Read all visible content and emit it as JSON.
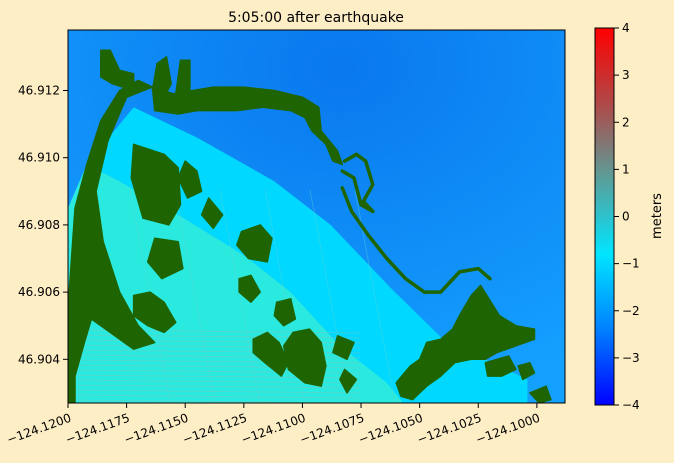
{
  "chart_data": {
    "type": "heatmap",
    "title": "5:05:00 after earthquake",
    "xlabel": "",
    "ylabel": "",
    "x_ticks": [
      {
        "value": -124.12,
        "label": "−124.1200"
      },
      {
        "value": -124.1175,
        "label": "−124.1175"
      },
      {
        "value": -124.115,
        "label": "−124.1150"
      },
      {
        "value": -124.1125,
        "label": "−124.1125"
      },
      {
        "value": -124.11,
        "label": "−124.1100"
      },
      {
        "value": -124.1075,
        "label": "−124.1075"
      },
      {
        "value": -124.105,
        "label": "−124.1050"
      },
      {
        "value": -124.1025,
        "label": "−124.1025"
      },
      {
        "value": -124.1,
        "label": "−124.1000"
      }
    ],
    "y_ticks": [
      {
        "value": 46.904,
        "label": "46.904"
      },
      {
        "value": 46.906,
        "label": "46.906"
      },
      {
        "value": 46.908,
        "label": "46.908"
      },
      {
        "value": 46.91,
        "label": "46.910"
      },
      {
        "value": 46.912,
        "label": "46.912"
      }
    ],
    "xlim": [
      -124.12,
      -124.0988
    ],
    "ylim": [
      46.9027,
      46.9138
    ],
    "colorbar": {
      "label": "meters",
      "min": -4,
      "max": 4,
      "ticks": [
        -4,
        -3,
        -2,
        -1,
        0,
        1,
        2,
        3,
        4
      ],
      "tick_labels": [
        "−4",
        "−3",
        "−2",
        "−1",
        "0",
        "1",
        "2",
        "3",
        "4"
      ],
      "colors": [
        "#0000ff",
        "#0080ff",
        "#00e5ff",
        "#5a9f9a",
        "#b04848",
        "#ff0000"
      ]
    },
    "colors": {
      "land": "#1e6400",
      "deep_water": "#0c86f2",
      "shallow_water": "#00d8ff",
      "inundated": "#2aeae0",
      "figure_background": "#feeec6"
    },
    "regions": {
      "land": [
        [
          [
            -124.12,
            46.9027
          ],
          [
            -124.12,
            46.9055
          ],
          [
            -124.1197,
            46.9085
          ],
          [
            -124.1192,
            46.9098
          ],
          [
            -124.1186,
            46.9111
          ],
          [
            -124.1178,
            46.912
          ],
          [
            -124.117,
            46.9123
          ],
          [
            -124.1164,
            46.9121
          ],
          [
            -124.1175,
            46.9118
          ],
          [
            -124.1183,
            46.9105
          ],
          [
            -124.1188,
            46.909
          ],
          [
            -124.1185,
            46.9075
          ],
          [
            -124.1178,
            46.906
          ],
          [
            -124.117,
            46.905
          ],
          [
            -124.1163,
            46.9045
          ],
          [
            -124.1172,
            46.9043
          ],
          [
            -124.1182,
            46.9048
          ],
          [
            -124.119,
            46.9052
          ],
          [
            -124.1193,
            46.9045
          ],
          [
            -124.1197,
            46.9035
          ],
          [
            -124.1197,
            46.9027
          ]
        ],
        [
          [
            -124.1172,
            46.912
          ],
          [
            -124.1181,
            46.9122
          ],
          [
            -124.1186,
            46.9124
          ],
          [
            -124.1186,
            46.9132
          ],
          [
            -124.1182,
            46.9132
          ],
          [
            -124.1178,
            46.9126
          ],
          [
            -124.1172,
            46.9125
          ]
        ],
        [
          [
            -124.1164,
            46.912
          ],
          [
            -124.1162,
            46.9128
          ],
          [
            -124.1158,
            46.913
          ],
          [
            -124.1156,
            46.9122
          ],
          [
            -124.1159,
            46.9118
          ]
        ],
        [
          [
            -124.1154,
            46.9119
          ],
          [
            -124.1152,
            46.9129
          ],
          [
            -124.1148,
            46.9129
          ],
          [
            -124.1148,
            46.912
          ]
        ],
        [
          [
            -124.1164,
            46.9121
          ],
          [
            -124.1155,
            46.9119
          ],
          [
            -124.1138,
            46.9121
          ],
          [
            -124.1125,
            46.9121
          ],
          [
            -124.1112,
            46.912
          ],
          [
            -124.11,
            46.9118
          ],
          [
            -124.1093,
            46.9115
          ],
          [
            -124.1092,
            46.9108
          ],
          [
            -124.1085,
            46.9102
          ],
          [
            -124.1083,
            46.9098
          ],
          [
            -124.1087,
            46.9099
          ],
          [
            -124.109,
            46.9104
          ],
          [
            -124.1096,
            46.9108
          ],
          [
            -124.1099,
            46.9112
          ],
          [
            -124.1105,
            46.9114
          ],
          [
            -124.1117,
            46.9115
          ],
          [
            -124.1128,
            46.9114
          ],
          [
            -124.1145,
            46.9114
          ],
          [
            -124.1153,
            46.9113
          ],
          [
            -124.1163,
            46.9114
          ]
        ],
        [
          [
            -124.1172,
            46.9104
          ],
          [
            -124.1159,
            46.9101
          ],
          [
            -124.1153,
            46.9097
          ],
          [
            -124.1152,
            46.9086
          ],
          [
            -124.1157,
            46.908
          ],
          [
            -124.1168,
            46.9082
          ],
          [
            -124.1173,
            46.9094
          ]
        ],
        [
          [
            -124.115,
            46.9099
          ],
          [
            -124.1145,
            46.9096
          ],
          [
            -124.1143,
            46.909
          ],
          [
            -124.1149,
            46.9088
          ],
          [
            -124.1153,
            46.9094
          ]
        ],
        [
          [
            -124.114,
            46.9088
          ],
          [
            -124.1134,
            46.9083
          ],
          [
            -124.1138,
            46.9079
          ],
          [
            -124.1143,
            46.9083
          ]
        ],
        [
          [
            -124.1163,
            46.9076
          ],
          [
            -124.1153,
            46.9075
          ],
          [
            -124.1151,
            46.9067
          ],
          [
            -124.116,
            46.9064
          ],
          [
            -124.1166,
            46.9069
          ]
        ],
        [
          [
            -124.1172,
            46.9059
          ],
          [
            -124.1165,
            46.906
          ],
          [
            -124.1159,
            46.9057
          ],
          [
            -124.1154,
            46.9051
          ],
          [
            -124.1159,
            46.9048
          ],
          [
            -124.1166,
            46.905
          ],
          [
            -124.1172,
            46.9053
          ]
        ],
        [
          [
            -124.1126,
            46.9078
          ],
          [
            -124.1118,
            46.908
          ],
          [
            -124.1113,
            46.9076
          ],
          [
            -124.1115,
            46.9069
          ],
          [
            -124.1123,
            46.907
          ],
          [
            -124.1128,
            46.9074
          ]
        ],
        [
          [
            -124.1127,
            46.9064
          ],
          [
            -124.1122,
            46.9065
          ],
          [
            -124.1118,
            46.906
          ],
          [
            -124.1122,
            46.9057
          ],
          [
            -124.1127,
            46.906
          ]
        ],
        [
          [
            -124.1111,
            46.9057
          ],
          [
            -124.1105,
            46.9058
          ],
          [
            -124.1103,
            46.9052
          ],
          [
            -124.1108,
            46.905
          ],
          [
            -124.1112,
            46.9053
          ]
        ],
        [
          [
            -124.1121,
            46.9046
          ],
          [
            -124.1115,
            46.9048
          ],
          [
            -124.111,
            46.9045
          ],
          [
            -124.1106,
            46.9039
          ],
          [
            -124.1109,
            46.9035
          ],
          [
            -124.1116,
            46.9039
          ],
          [
            -124.1121,
            46.9042
          ]
        ],
        [
          [
            -124.1104,
            46.9048
          ],
          [
            -124.1097,
            46.9049
          ],
          [
            -124.1092,
            46.9045
          ],
          [
            -124.109,
            46.9038
          ],
          [
            -124.1092,
            46.9032
          ],
          [
            -124.1099,
            46.9033
          ],
          [
            -124.1106,
            46.9037
          ],
          [
            -124.1108,
            46.9044
          ]
        ],
        [
          [
            -124.1085,
            46.9047
          ],
          [
            -124.1078,
            46.9045
          ],
          [
            -124.1081,
            46.904
          ],
          [
            -124.1087,
            46.9042
          ]
        ],
        [
          [
            -124.1082,
            46.9037
          ],
          [
            -124.1077,
            46.9034
          ],
          [
            -124.1081,
            46.903
          ],
          [
            -124.1084,
            46.9034
          ]
        ],
        [
          [
            -124.106,
            46.9033
          ],
          [
            -124.1054,
            46.9038
          ],
          [
            -124.105,
            46.904
          ],
          [
            -124.1047,
            46.9045
          ],
          [
            -124.1041,
            46.9046
          ],
          [
            -124.1036,
            46.9049
          ],
          [
            -124.1033,
            46.9053
          ],
          [
            -124.1028,
            46.9059
          ],
          [
            -124.1024,
            46.9062
          ],
          [
            -124.1016,
            46.9053
          ],
          [
            -124.1009,
            46.905
          ],
          [
            -124.1001,
            46.9049
          ],
          [
            -124.1001,
            46.9046
          ],
          [
            -124.1009,
            46.9044
          ],
          [
            -124.1017,
            46.9042
          ],
          [
            -124.1022,
            46.904
          ],
          [
            -124.1028,
            46.904
          ],
          [
            -124.1035,
            46.9039
          ],
          [
            -124.1041,
            46.9035
          ],
          [
            -124.1047,
            46.9032
          ],
          [
            -124.1053,
            46.9028
          ],
          [
            -124.1058,
            46.9029
          ]
        ],
        [
          [
            -124.1022,
            46.9039
          ],
          [
            -124.1012,
            46.9041
          ],
          [
            -124.1009,
            46.9037
          ],
          [
            -124.1015,
            46.9035
          ],
          [
            -124.1021,
            46.9035
          ]
        ],
        [
          [
            -124.1008,
            46.9038
          ],
          [
            -124.1003,
            46.9039
          ],
          [
            -124.1001,
            46.9036
          ],
          [
            -124.1006,
            46.9034
          ]
        ],
        [
          [
            -124.1003,
            46.903
          ],
          [
            -124.0996,
            46.9032
          ],
          [
            -124.0994,
            46.9028
          ],
          [
            -124.0999,
            46.9027
          ]
        ]
      ],
      "breakwater_lines": [
        [
          [
            -124.1082,
            46.9099
          ],
          [
            -124.1077,
            46.9101
          ],
          [
            -124.1073,
            46.9099
          ],
          [
            -124.107,
            46.9092
          ],
          [
            -124.1074,
            46.9087
          ],
          [
            -124.107,
            46.9084
          ],
          [
            -124.1075,
            46.9086
          ],
          [
            -124.1078,
            46.9094
          ],
          [
            -124.1083,
            46.9096
          ]
        ],
        [
          [
            -124.1083,
            46.9091
          ],
          [
            -124.1079,
            46.9084
          ],
          [
            -124.1072,
            46.9077
          ],
          [
            -124.1064,
            46.907
          ],
          [
            -124.1056,
            46.9064
          ],
          [
            -124.1048,
            46.906
          ],
          [
            -124.1041,
            46.906
          ],
          [
            -124.1037,
            46.9063
          ],
          [
            -124.1033,
            46.9066
          ],
          [
            -124.1025,
            46.9067
          ],
          [
            -124.102,
            46.9064
          ]
        ]
      ],
      "inundated_zone": [
        [
          -124.1192,
          46.9098
        ],
        [
          -124.1178,
          46.9093
        ],
        [
          -124.1153,
          46.9083
        ],
        [
          -124.1125,
          46.9071
        ],
        [
          -124.1105,
          46.906
        ],
        [
          -124.1084,
          46.9044
        ],
        [
          -124.1064,
          46.9033
        ],
        [
          -124.1057,
          46.9027
        ],
        [
          -124.12,
          46.9027
        ],
        [
          -124.12,
          46.9085
        ]
      ],
      "shallow_zone": [
        [
          -124.1172,
          46.9115
        ],
        [
          -124.1145,
          46.9106
        ],
        [
          -124.1112,
          46.9093
        ],
        [
          -124.1088,
          46.908
        ],
        [
          -124.1062,
          46.9061
        ],
        [
          -124.104,
          46.9046
        ],
        [
          -124.1004,
          46.9034
        ],
        [
          -124.1004,
          46.9027
        ],
        [
          -124.1057,
          46.9027
        ],
        [
          -124.1084,
          46.9044
        ],
        [
          -124.1105,
          46.906
        ],
        [
          -124.1125,
          46.9071
        ],
        [
          -124.1153,
          46.9083
        ],
        [
          -124.1178,
          46.9093
        ],
        [
          -124.1192,
          46.9098
        ]
      ]
    }
  }
}
